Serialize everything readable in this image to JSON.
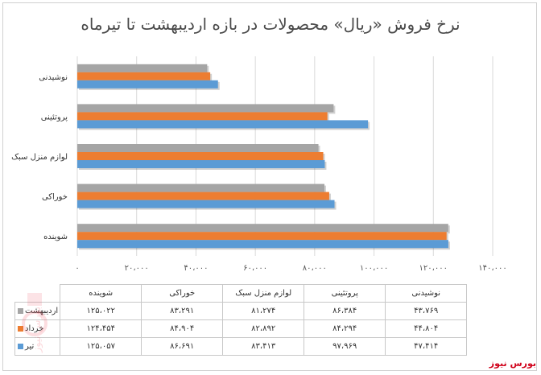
{
  "chart_data": {
    "type": "bar",
    "orientation": "horizontal",
    "title": "نرخ فروش «ریال» محصولات در بازه اردیبهشت تا تیرماه",
    "categories": [
      "نوشیدنی",
      "پروتئینی",
      "لوازم منزل سبک",
      "خوراکی",
      "شوینده"
    ],
    "series": [
      {
        "name": "اردیبهشت",
        "color": "#a5a5a5",
        "values": [
          43769,
          86384,
          81274,
          83291,
          125022
        ],
        "labels": [
          "۴۳،۷۶۹",
          "۸۶،۳۸۴",
          "۸۱،۲۷۴",
          "۸۳،۲۹۱",
          "۱۲۵،۰۲۲"
        ]
      },
      {
        "name": "خرداد",
        "color": "#ed7d31",
        "values": [
          44804,
          84294,
          82892,
          84904,
          124454
        ],
        "labels": [
          "۴۴،۸۰۴",
          "۸۴،۲۹۴",
          "۸۲،۸۹۲",
          "۸۴،۹۰۴",
          "۱۲۴،۴۵۴"
        ]
      },
      {
        "name": "تیر",
        "color": "#5b9bd5",
        "values": [
          47414,
          97969,
          83413,
          86691,
          125057
        ],
        "labels": [
          "۴۷،۴۱۴",
          "۹۷،۹۶۹",
          "۸۳،۴۱۳",
          "۸۶،۶۹۱",
          "۱۲۵،۰۵۷"
        ]
      }
    ],
    "xlim": [
      0,
      140000
    ],
    "ticks": [
      "۰",
      "۲۰،۰۰۰",
      "۴۰،۰۰۰",
      "۶۰،۰۰۰",
      "۸۰،۰۰۰",
      "۱۰۰،۰۰۰",
      "۱۲۰،۰۰۰",
      "۱۴۰،۰۰۰"
    ],
    "grid": true,
    "legend": "data table below chart"
  },
  "source_logo": "بورس نیوز"
}
